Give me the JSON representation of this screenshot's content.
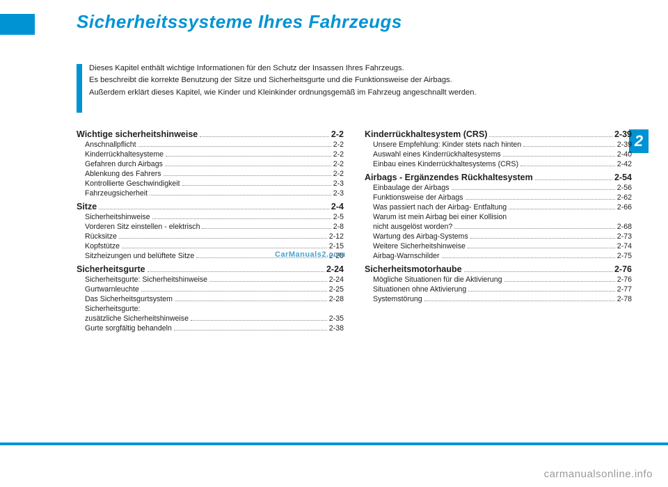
{
  "title": "Sicherheitssysteme Ihres Fahrzeugs",
  "chapter_badge": "2",
  "intro": {
    "line1": "Dieses Kapitel enthält wichtige Informationen für den Schutz der Insassen Ihres Fahrzeugs.",
    "line2": "Es beschreibt die korrekte Benutzung der Sitze und Sicherheitsgurte und die Funktionsweise der Airbags.",
    "line3": "Außerdem erklärt dieses Kapitel, wie Kinder und Kleinkinder ordnungsgemäß im Fahrzeug angeschnallt werden."
  },
  "watermark": "CarManuals2.com",
  "footer": "carmanualsonline.info",
  "col1": [
    {
      "type": "section",
      "label": "Wichtige sicherheitshinweise",
      "pg": "2-2"
    },
    {
      "type": "entry",
      "label": "Anschnallpflicht",
      "pg": "2-2"
    },
    {
      "type": "entry",
      "label": "Kinderrückhaltesysteme",
      "pg": "2-2"
    },
    {
      "type": "entry",
      "label": "Gefahren durch Airbags",
      "pg": "2-2"
    },
    {
      "type": "entry",
      "label": "Ablenkung des Fahrers",
      "pg": "2-2"
    },
    {
      "type": "entry",
      "label": "Kontrollierte Geschwindigkeit",
      "pg": "2-3"
    },
    {
      "type": "entry",
      "label": "Fahrzeugsicherheit",
      "pg": "2-3"
    },
    {
      "type": "section",
      "label": "Sitze",
      "pg": "2-4"
    },
    {
      "type": "entry",
      "label": "Sicherheitshinweise",
      "pg": "2-5"
    },
    {
      "type": "entry",
      "label": "Vorderen Sitz einstellen - elektrisch",
      "pg": "2-8"
    },
    {
      "type": "entry",
      "label": "Rücksitze",
      "pg": "2-12"
    },
    {
      "type": "entry",
      "label": "Kopfstütze",
      "pg": "2-15"
    },
    {
      "type": "entry",
      "label": "Sitzheizungen und belüftete Sitze",
      "pg": "2-20"
    },
    {
      "type": "section",
      "label": "Sicherheitsgurte",
      "pg": "2-24"
    },
    {
      "type": "entry",
      "label": "Sicherheitsgurte: Sicherheitshinweise",
      "pg": "2-24"
    },
    {
      "type": "entry",
      "label": "Gurtwarnleuchte",
      "pg": "2-25"
    },
    {
      "type": "entry",
      "label": "Das Sicherheitsgurtsystem",
      "pg": "2-28"
    },
    {
      "type": "entry",
      "label": "Sicherheitsgurte:",
      "pg": ""
    },
    {
      "type": "entry",
      "label": "zusätzliche Sicherheitshinweise",
      "pg": "2-35"
    },
    {
      "type": "entry",
      "label": "Gurte sorgfältig behandeln",
      "pg": "2-38"
    }
  ],
  "col2": [
    {
      "type": "section",
      "label": "Kinderrückhaltesystem (CRS)",
      "pg": "2-39"
    },
    {
      "type": "entry",
      "label": "Unsere Empfehlung: Kinder stets nach hinten",
      "pg": "2-39"
    },
    {
      "type": "entry",
      "label": "Auswahl eines Kinderrückhaltesystems",
      "pg": "2-40"
    },
    {
      "type": "entry",
      "label": "Einbau eines Kinderrückhaltesystems (CRS)",
      "pg": "2-42"
    },
    {
      "type": "section",
      "label": "Airbags - Ergänzendes Rückhaltesystem",
      "pg": "2-54"
    },
    {
      "type": "entry",
      "label": "Einbaulage der Airbags",
      "pg": "2-56"
    },
    {
      "type": "entry",
      "label": "Funktionsweise der Airbags",
      "pg": "2-62"
    },
    {
      "type": "entry",
      "label": "Was passiert nach der Airbag- Entfaltung",
      "pg": "2-66"
    },
    {
      "type": "entry",
      "label": "Warum ist mein Airbag bei einer Kollision",
      "pg": ""
    },
    {
      "type": "entry",
      "label": "nicht ausgelöst worden?",
      "pg": "2-68"
    },
    {
      "type": "entry",
      "label": "Wartung des Airbag-Systems",
      "pg": "2-73"
    },
    {
      "type": "entry",
      "label": "Weitere Sicherheitshinweise",
      "pg": "2-74"
    },
    {
      "type": "entry",
      "label": "Airbag-Warnschilder",
      "pg": "2-75"
    },
    {
      "type": "section",
      "label": "Sicherheitsmotorhaube",
      "pg": "2-76"
    },
    {
      "type": "entry",
      "label": "Mögliche Situationen für die Aktivierung",
      "pg": "2-76"
    },
    {
      "type": "entry",
      "label": "Situationen ohne Aktivierung",
      "pg": "2-77"
    },
    {
      "type": "entry",
      "label": "Systemstörung",
      "pg": "2-78"
    }
  ],
  "colors": {
    "accent": "#0093d4",
    "text": "#222222",
    "watermark": "#4aa3cc",
    "footer": "#9a9a9a",
    "background": "#ffffff"
  }
}
